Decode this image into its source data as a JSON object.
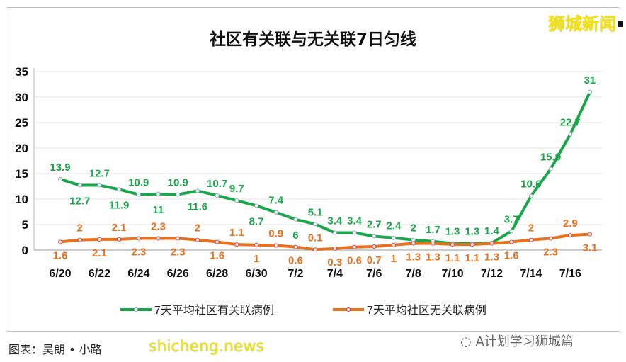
{
  "chart_data": {
    "type": "line",
    "title": "社区有关联与无关联7日匀线",
    "categories": [
      "6/20",
      "6/21",
      "6/22",
      "6/23",
      "6/24",
      "6/25",
      "6/26",
      "6/27",
      "6/28",
      "6/29",
      "6/30",
      "7/1",
      "7/2",
      "7/3",
      "7/4",
      "7/5",
      "7/6",
      "7/7",
      "7/8",
      "7/9",
      "7/10",
      "7/11",
      "7/12",
      "7/13",
      "7/14",
      "7/15",
      "7/16",
      "7/17"
    ],
    "tick_labels": [
      "6/20",
      "6/22",
      "6/24",
      "6/26",
      "6/28",
      "6/30",
      "7/2",
      "7/4",
      "7/6",
      "7/8",
      "7/10",
      "7/12",
      "7/14",
      "7/16"
    ],
    "ylim": [
      0,
      35
    ],
    "yticks": [
      0,
      5,
      10,
      15,
      20,
      25,
      30,
      35
    ],
    "grid": true,
    "legend_position": "bottom",
    "series": [
      {
        "name": "7天平均社区有关联病例",
        "color": "#1aa64a",
        "values": [
          13.9,
          12.7,
          12.7,
          11.9,
          10.9,
          11,
          10.9,
          11.6,
          10.7,
          9.7,
          8.7,
          7.4,
          6,
          5.1,
          3.4,
          3.4,
          2.7,
          2.4,
          2,
          1.7,
          1.3,
          1.3,
          1.4,
          3.7,
          10.6,
          15.9,
          22.7,
          31
        ]
      },
      {
        "name": "7天平均社区无关联病例",
        "color": "#e8711d",
        "values": [
          1.6,
          2,
          2.1,
          2.1,
          2.3,
          2.3,
          2.3,
          2,
          1.6,
          1.1,
          1,
          0.9,
          0.6,
          0.1,
          0.3,
          0.6,
          0.7,
          1,
          1.3,
          1.3,
          1.1,
          1.1,
          1.3,
          1.6,
          2,
          2.3,
          2.9,
          3.1
        ]
      }
    ]
  },
  "brand": "狮城新闻",
  "caption": "图表：吴朗 • 小路",
  "watermark": "shicheng.news",
  "wechat": "A计划学习狮城篇"
}
